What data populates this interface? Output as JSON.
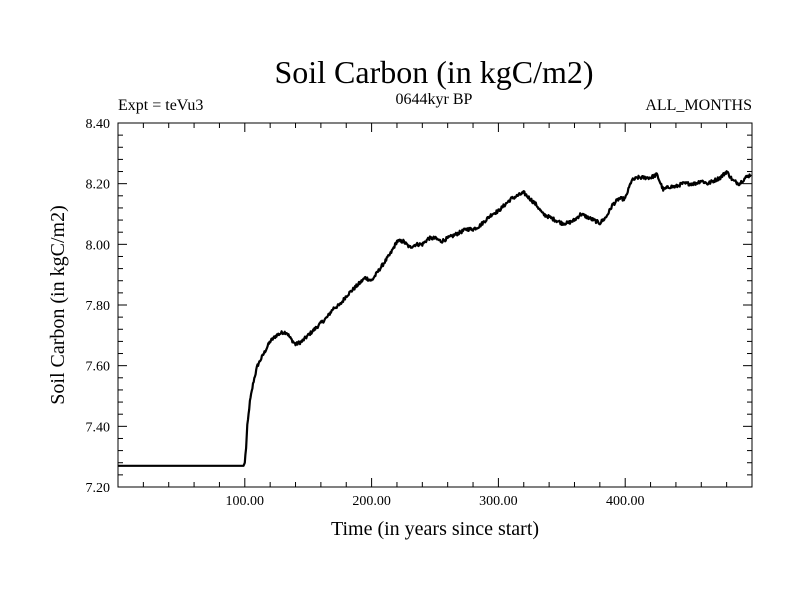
{
  "chart_data": {
    "type": "line",
    "title": "Soil Carbon (in kgC/m2)",
    "subtitle_center": "0644kyr BP",
    "subtitle_left": "Expt = teVu3",
    "subtitle_right": "ALL_MONTHS",
    "xlabel": "Time (in years since start)",
    "ylabel": "Soil Carbon (in kgC/m2)",
    "xlim": [
      0,
      500
    ],
    "ylim": [
      7.2,
      8.4
    ],
    "x_ticks": [
      {
        "value": 100,
        "label": "100.00"
      },
      {
        "value": 200,
        "label": "200.00"
      },
      {
        "value": 300,
        "label": "300.00"
      },
      {
        "value": 400,
        "label": "400.00"
      }
    ],
    "y_ticks": [
      {
        "value": 7.2,
        "label": "7.20"
      },
      {
        "value": 7.4,
        "label": "7.40"
      },
      {
        "value": 7.6,
        "label": "7.60"
      },
      {
        "value": 7.8,
        "label": "7.80"
      },
      {
        "value": 8.0,
        "label": "8.00"
      },
      {
        "value": 8.2,
        "label": "8.20"
      },
      {
        "value": 8.4,
        "label": "8.40"
      }
    ],
    "series": [
      {
        "name": "Soil Carbon",
        "color": "#000000",
        "x": [
          0,
          99,
          100,
          101,
          102,
          104,
          107,
          110,
          115,
          120,
          125,
          130,
          133,
          136,
          140,
          145,
          150,
          155,
          160,
          165,
          170,
          175,
          180,
          185,
          190,
          195,
          200,
          205,
          210,
          215,
          220,
          225,
          230,
          235,
          240,
          245,
          250,
          255,
          260,
          265,
          270,
          275,
          280,
          285,
          290,
          295,
          300,
          305,
          310,
          315,
          320,
          325,
          330,
          335,
          340,
          345,
          350,
          355,
          360,
          365,
          370,
          375,
          380,
          385,
          390,
          395,
          400,
          405,
          410,
          415,
          420,
          425,
          430,
          435,
          440,
          445,
          450,
          455,
          460,
          465,
          470,
          475,
          480,
          485,
          490,
          495,
          499
        ],
        "y": [
          7.27,
          7.27,
          7.28,
          7.33,
          7.4,
          7.48,
          7.55,
          7.6,
          7.64,
          7.68,
          7.7,
          7.71,
          7.71,
          7.69,
          7.67,
          7.68,
          7.7,
          7.72,
          7.74,
          7.76,
          7.79,
          7.8,
          7.83,
          7.85,
          7.87,
          7.89,
          7.88,
          7.91,
          7.94,
          7.97,
          8.01,
          8.01,
          7.99,
          8.0,
          8.0,
          8.02,
          8.02,
          8.01,
          8.02,
          8.03,
          8.04,
          8.05,
          8.05,
          8.06,
          8.08,
          8.1,
          8.11,
          8.13,
          8.15,
          8.16,
          8.17,
          8.15,
          8.13,
          8.1,
          8.09,
          8.08,
          8.07,
          8.07,
          8.08,
          8.1,
          8.09,
          8.08,
          8.07,
          8.09,
          8.13,
          8.15,
          8.15,
          8.21,
          8.22,
          8.22,
          8.22,
          8.23,
          8.18,
          8.19,
          8.19,
          8.2,
          8.2,
          8.2,
          8.21,
          8.2,
          8.21,
          8.22,
          8.24,
          8.21,
          8.2,
          8.22,
          8.23
        ]
      }
    ]
  }
}
